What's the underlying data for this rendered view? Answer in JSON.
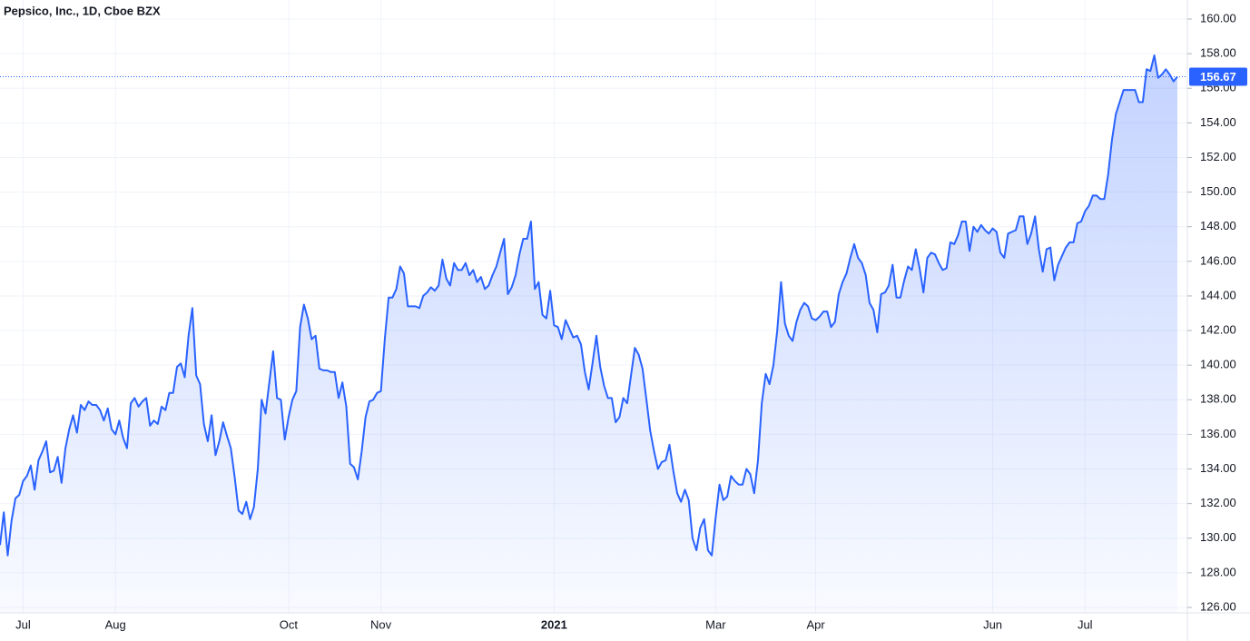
{
  "chart_data": {
    "type": "area",
    "title": "Pepsico, Inc., 1D, Cboe BZX",
    "color": "#2962ff",
    "grid": true,
    "values": [
      129.6,
      131.5,
      129,
      131,
      132.3,
      132.5,
      133.3,
      133.6,
      134.2,
      132.8,
      134.5,
      135,
      135.6,
      133.8,
      133.9,
      134.7,
      133.2,
      135.2,
      136.3,
      137.1,
      136.1,
      137.7,
      137.4,
      137.9,
      137.7,
      137.7,
      137.4,
      136.8,
      137.5,
      136.3,
      136,
      136.8,
      135.8,
      135.2,
      137.8,
      138.1,
      137.6,
      137.9,
      138.1,
      136.5,
      136.8,
      136.6,
      137.6,
      137.4,
      138.4,
      138.4,
      139.9,
      140.1,
      139.3,
      141.7,
      143.3,
      139.4,
      138.9,
      136.6,
      135.6,
      137.1,
      134.8,
      135.6,
      136.7,
      135.9,
      135.2,
      133.5,
      131.6,
      131.4,
      132.1,
      131.1,
      131.8,
      134,
      138,
      137.2,
      139,
      140.8,
      138.1,
      138,
      135.7,
      137,
      138,
      138.5,
      142.2,
      143.5,
      142.7,
      141.5,
      141.7,
      139.8,
      139.7,
      139.7,
      139.6,
      139.6,
      138.1,
      139,
      137.6,
      134.3,
      134.1,
      133.4,
      135,
      137,
      137.9,
      138,
      138.4,
      138.5,
      141.5,
      143.9,
      143.9,
      144.4,
      145.7,
      145.3,
      143.4,
      143.4,
      143.4,
      143.3,
      144,
      144.2,
      144.5,
      144.3,
      144.6,
      146.1,
      145,
      144.6,
      145.9,
      145.5,
      145.5,
      145.9,
      145.2,
      145.5,
      144.8,
      145.1,
      144.4,
      144.6,
      145.2,
      145.7,
      146.5,
      147.3,
      144.1,
      144.5,
      145.2,
      146.4,
      147.3,
      147.3,
      148.3,
      144.4,
      144.8,
      142.9,
      142.7,
      144.3,
      142.3,
      142.2,
      141.5,
      142.6,
      142.1,
      141.6,
      141.7,
      141.2,
      139.6,
      138.6,
      140.1,
      141.7,
      139.9,
      138.8,
      138.1,
      138.1,
      136.7,
      137,
      138.1,
      137.8,
      139.4,
      141,
      140.6,
      139.8,
      138,
      136.2,
      135,
      134,
      134.4,
      134.5,
      135.4,
      133.9,
      132.6,
      132.1,
      132.8,
      132.2,
      130,
      129.3,
      130.6,
      131.1,
      129.3,
      129,
      131.2,
      133.1,
      132.2,
      132.4,
      133.6,
      133.3,
      133.1,
      133.1,
      134,
      133.7,
      132.6,
      134.5,
      137.8,
      139.5,
      138.9,
      140,
      142,
      144.8,
      142.4,
      141.7,
      141.4,
      142.5,
      143.2,
      143.6,
      143.4,
      142.7,
      142.6,
      142.8,
      143.1,
      143.1,
      142.2,
      142.5,
      144.1,
      144.8,
      145.3,
      146.2,
      147,
      146.2,
      145.9,
      145.2,
      143.6,
      143.2,
      141.9,
      144.1,
      144.2,
      144.6,
      145.8,
      143.9,
      143.9,
      144.9,
      145.7,
      145.5,
      146.7,
      145.6,
      144.2,
      146.2,
      146.5,
      146.4,
      145.9,
      145.5,
      145.6,
      147.1,
      147,
      147.5,
      148.3,
      148.3,
      146.6,
      148,
      147.7,
      148.1,
      147.8,
      147.6,
      147.9,
      147.7,
      146.5,
      146.2,
      147.6,
      147.7,
      147.8,
      148.6,
      148.6,
      147,
      147.6,
      148.6,
      146.7,
      145.4,
      146.7,
      146.8,
      144.9,
      145.8,
      146.3,
      146.8,
      147.1,
      147.1,
      148.2,
      148.3,
      148.9,
      149.2,
      149.8,
      149.8,
      149.6,
      149.6,
      151,
      153,
      154.5,
      155.2,
      155.9,
      155.9,
      155.9,
      155.9,
      155.2,
      155.2,
      157.1,
      157,
      157.9,
      156.6,
      156.8,
      157.1,
      156.8,
      156.4,
      156.67
    ],
    "xlim": [
      0,
      306
    ],
    "xticks": [
      {
        "value": 6,
        "label": "Jul"
      },
      {
        "value": 30,
        "label": "Aug"
      },
      {
        "value": 75,
        "label": "Oct"
      },
      {
        "value": 99,
        "label": "Nov"
      },
      {
        "value": 144,
        "label": "2021"
      },
      {
        "value": 186,
        "label": "Mar"
      },
      {
        "value": 212,
        "label": "Apr"
      },
      {
        "value": 258,
        "label": "Jun"
      },
      {
        "value": 282,
        "label": "Jul"
      }
    ],
    "ylim": [
      126,
      160
    ],
    "yticks": [
      {
        "value": 126,
        "label": "126.00"
      },
      {
        "value": 128,
        "label": "128.00"
      },
      {
        "value": 130,
        "label": "130.00"
      },
      {
        "value": 132,
        "label": "132.00"
      },
      {
        "value": 134,
        "label": "134.00"
      },
      {
        "value": 136,
        "label": "136.00"
      },
      {
        "value": 138,
        "label": "138.00"
      },
      {
        "value": 140,
        "label": "140.00"
      },
      {
        "value": 142,
        "label": "142.00"
      },
      {
        "value": 144,
        "label": "144.00"
      },
      {
        "value": 146,
        "label": "146.00"
      },
      {
        "value": 148,
        "label": "148.00"
      },
      {
        "value": 150,
        "label": "150.00"
      },
      {
        "value": 152,
        "label": "152.00"
      },
      {
        "value": 154,
        "label": "154.00"
      },
      {
        "value": 156,
        "label": "156.00"
      },
      {
        "value": 158,
        "label": "158.00"
      },
      {
        "value": 160,
        "label": "160.00"
      }
    ]
  }
}
